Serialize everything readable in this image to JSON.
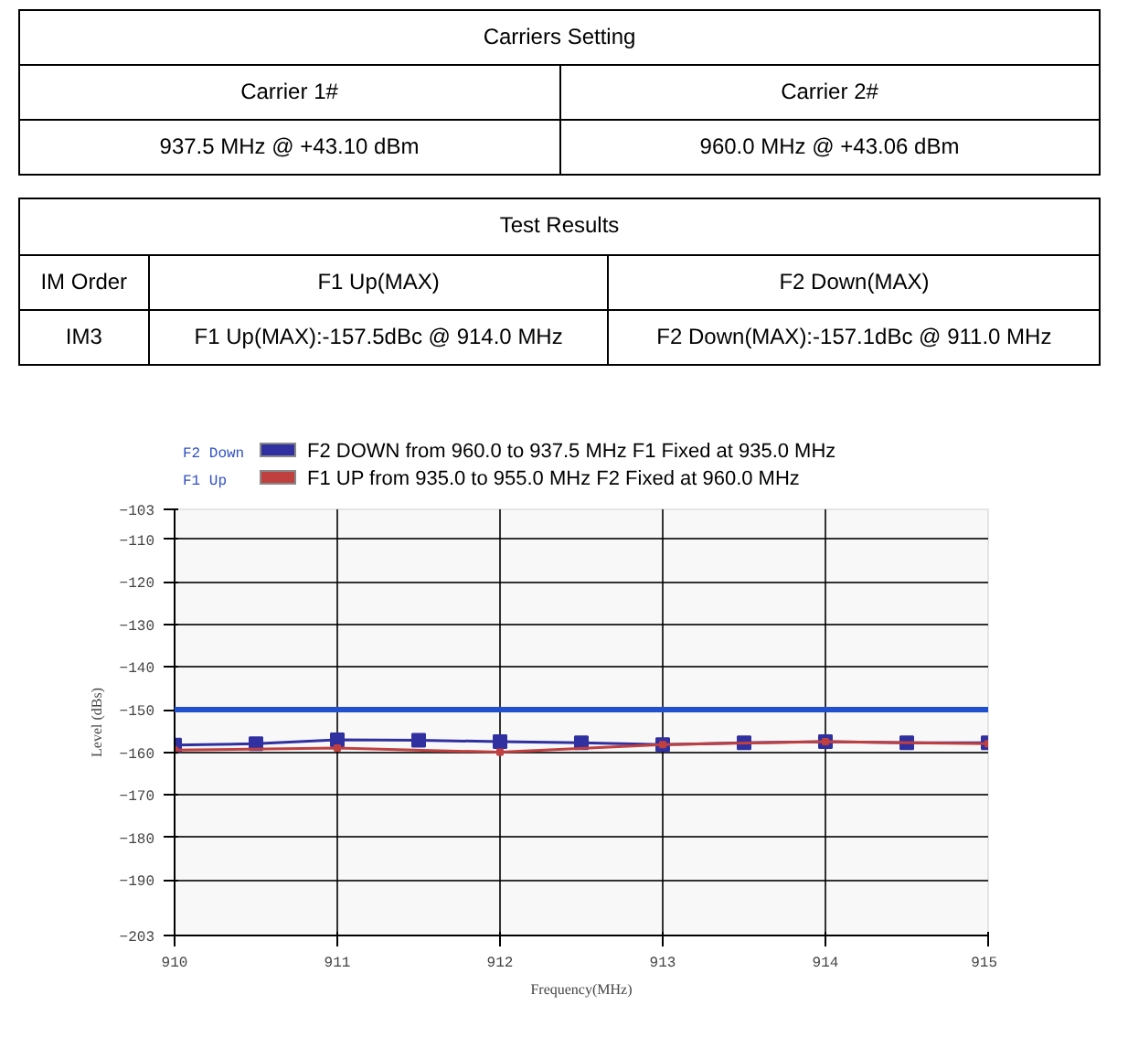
{
  "chart_data": {
    "type": "line",
    "xlabel": "Frequency(MHz)",
    "ylabel": "Level (dBs)",
    "annotations": [
      "Carriers Setting",
      "Carrier 1#",
      "Carrier 2#",
      "937.5 MHz @ +43.10 dBm",
      "960.0 MHz @ +43.06 dBm",
      "Test Results",
      "IM Order",
      "F1 Up(MAX)",
      "F2 Down(MAX)",
      "IM3",
      "F1 Up(MAX):-157.5dBc  @ 914.0 MHz",
      "F2 Down(MAX):-157.1dBc @ 911.0 MHz",
      "F2 Down",
      "F1 Up"
    ],
    "series": [
      {
        "name": "F2 DOWN from 960.0 to 937.5  MHz F1 Fixed at 935.0  MHz",
        "color": "#3030a0",
        "x": [
          910,
          910.5,
          911,
          911.5,
          912,
          912.5,
          913,
          913.5,
          914,
          914.5,
          915
        ],
        "values": [
          -158.3,
          -158,
          -157.1,
          -157.2,
          -157.5,
          -157.8,
          -158.2,
          -157.8,
          -157.5,
          -157.8,
          -157.8
        ]
      },
      {
        "name": "F1 UP from 935.0 to 955.0  MHz F2 Fixed at 960.0  MHz",
        "color": "#c04040",
        "x": [
          910,
          911,
          912,
          913,
          914,
          915
        ],
        "values": [
          -159.5,
          -159,
          -160,
          -158.2,
          -157.5,
          -158
        ]
      }
    ],
    "xlim": [
      910,
      915
    ],
    "xticks": [
      910,
      911,
      912,
      913,
      914,
      915
    ],
    "ylim": [
      -203,
      -103
    ],
    "yticks": [
      -103,
      -110,
      -120,
      -130,
      -140,
      -150,
      -160,
      -170,
      -180,
      -190,
      -203
    ],
    "ref_lines": [
      {
        "axis": "y",
        "value": -150,
        "color": "#2050d0"
      }
    ],
    "grid": true,
    "legend": "top",
    "marker": "square",
    "line_style": "solid"
  }
}
